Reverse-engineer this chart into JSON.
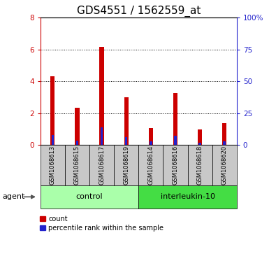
{
  "title": "GDS4551 / 1562559_at",
  "samples": [
    "GSM1068613",
    "GSM1068615",
    "GSM1068617",
    "GSM1068619",
    "GSM1068614",
    "GSM1068616",
    "GSM1068618",
    "GSM1068620"
  ],
  "count_values": [
    4.3,
    2.35,
    6.15,
    3.0,
    1.05,
    3.25,
    0.95,
    1.35
  ],
  "percentile_values": [
    7.5,
    3.5,
    13.75,
    6.0,
    2.75,
    6.875,
    1.5,
    2.5
  ],
  "groups": [
    {
      "label": "control",
      "indices": [
        0,
        1,
        2,
        3
      ],
      "color": "#aaffaa"
    },
    {
      "label": "interleukin-10",
      "indices": [
        4,
        5,
        6,
        7
      ],
      "color": "#44dd44"
    }
  ],
  "bar_color_red": "#cc0000",
  "bar_color_blue": "#2222cc",
  "ylim_left": [
    0,
    8
  ],
  "ylim_right": [
    0,
    100
  ],
  "yticks_left": [
    0,
    2,
    4,
    6,
    8
  ],
  "yticks_right": [
    0,
    25,
    50,
    75,
    100
  ],
  "ytick_labels_right": [
    "0",
    "25",
    "50",
    "75",
    "100%"
  ],
  "title_fontsize": 11,
  "tick_color_left": "#cc0000",
  "tick_color_right": "#2222cc",
  "legend_count": "count",
  "legend_percentile": "percentile rank within the sample",
  "agent_label": "agent",
  "label_bg": "#c8c8c8",
  "group_colors": [
    "#aaffaa",
    "#44dd44"
  ]
}
